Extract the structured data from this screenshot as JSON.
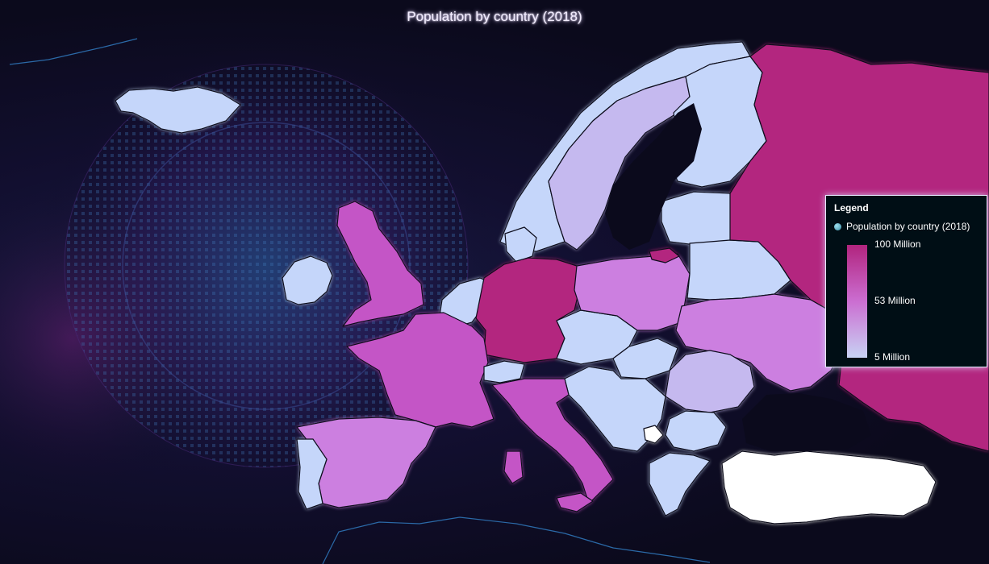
{
  "title": "Population by country (2018)",
  "legend": {
    "heading": "Legend",
    "series_name": "Population by country (2018)",
    "max_label": "100 Million",
    "mid_label": "53 Million",
    "min_label": "5 Million",
    "gradient_colors": [
      "#b1247e",
      "#cb6ed1",
      "#c8d2f4"
    ]
  },
  "colors": {
    "very_high": "#b3287f",
    "high": "#c455c6",
    "mid": "#cc7fe0",
    "low_mid": "#c5b9ef",
    "low": "#c5d6fa",
    "no_data": "#ffffff",
    "border": "#0a0a1a",
    "background": "#0b0a1c"
  },
  "chart_data": {
    "type": "choropleth",
    "title": "Population by country (2018)",
    "legend_range": [
      5,
      100
    ],
    "unit": "Million",
    "countries": [
      {
        "name": "Russia",
        "value": 100
      },
      {
        "name": "Germany",
        "value": 83
      },
      {
        "name": "United Kingdom",
        "value": 66
      },
      {
        "name": "France",
        "value": 67
      },
      {
        "name": "Italy",
        "value": 60
      },
      {
        "name": "Spain",
        "value": 47
      },
      {
        "name": "Ukraine",
        "value": 42
      },
      {
        "name": "Poland",
        "value": 38
      },
      {
        "name": "Romania",
        "value": 19
      },
      {
        "name": "Netherlands",
        "value": 17
      },
      {
        "name": "Sweden",
        "value": 10
      },
      {
        "name": "Norway",
        "value": 5
      },
      {
        "name": "Finland",
        "value": 5
      },
      {
        "name": "Belarus",
        "value": 9
      },
      {
        "name": "Portugal",
        "value": 10
      },
      {
        "name": "Ireland",
        "value": 5
      },
      {
        "name": "Iceland",
        "value": 5
      },
      {
        "name": "Czechia",
        "value": 11
      },
      {
        "name": "Austria",
        "value": 9
      },
      {
        "name": "Hungary",
        "value": 10
      },
      {
        "name": "Bulgaria",
        "value": 7
      },
      {
        "name": "Greece",
        "value": 11
      },
      {
        "name": "Turkey",
        "value": null
      },
      {
        "name": "Kosovo",
        "value": null
      }
    ]
  }
}
